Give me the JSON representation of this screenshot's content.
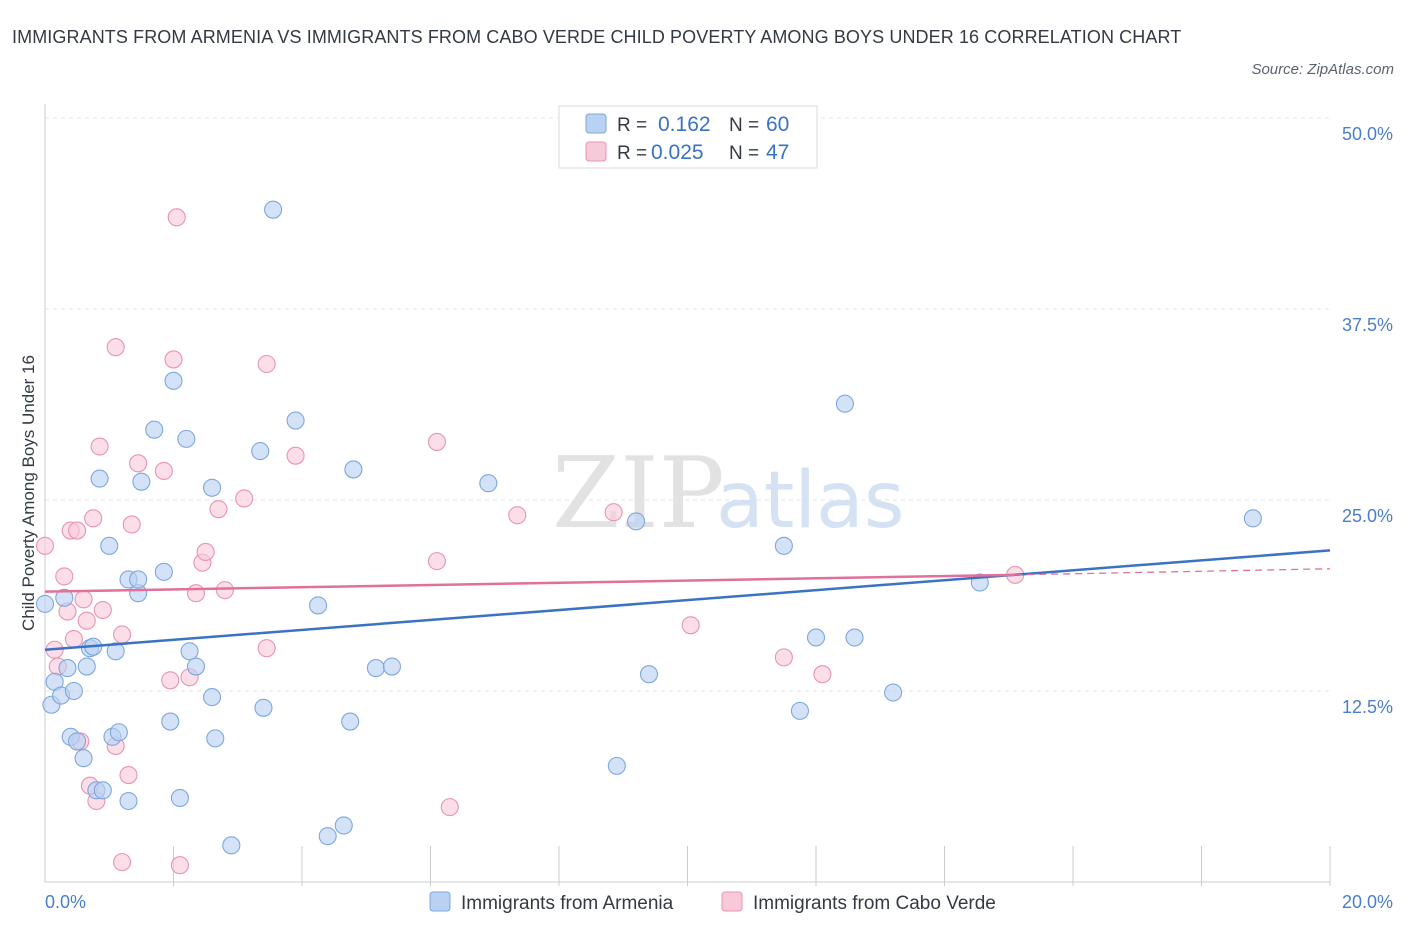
{
  "title": "IMMIGRANTS FROM ARMENIA VS IMMIGRANTS FROM CABO VERDE CHILD POVERTY AMONG BOYS UNDER 16 CORRELATION CHART",
  "source": "Source: ZipAtlas.com",
  "watermark": {
    "zip": "ZIP",
    "atlas": "atlas"
  },
  "colors": {
    "armenia_fill": "#b9d1f3",
    "armenia_stroke": "#7ea7de",
    "armenia_line": "#3a72c4",
    "cabo_fill": "#f8c9d8",
    "cabo_stroke": "#e994b0",
    "cabo_line": "#e0719a"
  },
  "stats": {
    "r_label": "R =",
    "n_label": "N =",
    "armenia": {
      "r": "0.162",
      "n": "60"
    },
    "cabo_verde": {
      "r": "0.025",
      "n": "47"
    }
  },
  "chart_data": {
    "type": "scatter",
    "title": "IMMIGRANTS FROM ARMENIA VS IMMIGRANTS FROM CABO VERDE CHILD POVERTY AMONG BOYS UNDER 16 CORRELATION CHART",
    "xlabel": "",
    "ylabel": "Child Poverty Among Boys Under 16",
    "xlim": [
      0,
      20
    ],
    "ylim": [
      0,
      50
    ],
    "x_tick_labels": [
      "0.0%",
      "20.0%"
    ],
    "y_ticks": [
      12.5,
      25.0,
      37.5,
      50.0
    ],
    "y_tick_labels": [
      "12.5%",
      "25.0%",
      "37.5%",
      "50.0%"
    ],
    "grid": true,
    "legend_position": "bottom-center",
    "series": [
      {
        "name": "Immigrants from Armenia",
        "trend": {
          "x": [
            0,
            20
          ],
          "y": [
            15.2,
            21.7
          ]
        },
        "points": [
          [
            0.0,
            18.2
          ],
          [
            0.1,
            11.6
          ],
          [
            0.15,
            13.1
          ],
          [
            0.25,
            12.2
          ],
          [
            0.3,
            18.6
          ],
          [
            0.35,
            14.0
          ],
          [
            0.4,
            9.5
          ],
          [
            0.45,
            12.5
          ],
          [
            0.5,
            9.2
          ],
          [
            0.6,
            8.1
          ],
          [
            0.65,
            14.1
          ],
          [
            0.7,
            15.3
          ],
          [
            0.75,
            15.4
          ],
          [
            0.8,
            6.0
          ],
          [
            0.85,
            26.4
          ],
          [
            0.9,
            6.0
          ],
          [
            1.0,
            22.0
          ],
          [
            1.05,
            9.5
          ],
          [
            1.1,
            15.1
          ],
          [
            1.15,
            9.8
          ],
          [
            1.3,
            5.3
          ],
          [
            1.3,
            19.8
          ],
          [
            1.45,
            18.9
          ],
          [
            1.45,
            19.8
          ],
          [
            1.5,
            26.2
          ],
          [
            1.7,
            29.6
          ],
          [
            1.85,
            20.3
          ],
          [
            1.95,
            10.5
          ],
          [
            2.0,
            32.8
          ],
          [
            2.1,
            5.5
          ],
          [
            2.2,
            29.0
          ],
          [
            2.25,
            15.1
          ],
          [
            2.35,
            14.1
          ],
          [
            2.6,
            12.1
          ],
          [
            2.6,
            25.8
          ],
          [
            2.65,
            9.4
          ],
          [
            2.9,
            2.4
          ],
          [
            3.35,
            28.2
          ],
          [
            3.4,
            11.4
          ],
          [
            3.55,
            44.0
          ],
          [
            3.9,
            30.2
          ],
          [
            4.25,
            18.1
          ],
          [
            4.4,
            3.0
          ],
          [
            4.65,
            3.7
          ],
          [
            4.75,
            10.5
          ],
          [
            4.8,
            27.0
          ],
          [
            5.15,
            14.0
          ],
          [
            5.4,
            14.1
          ],
          [
            6.9,
            26.1
          ],
          [
            8.9,
            7.6
          ],
          [
            9.2,
            23.6
          ],
          [
            9.4,
            13.6
          ],
          [
            11.5,
            22.0
          ],
          [
            11.75,
            11.2
          ],
          [
            12.0,
            16.0
          ],
          [
            12.45,
            31.3
          ],
          [
            12.6,
            16.0
          ],
          [
            13.2,
            12.4
          ],
          [
            14.55,
            19.6
          ],
          [
            18.8,
            23.8
          ]
        ]
      },
      {
        "name": "Immigrants from Cabo Verde",
        "trend": {
          "x": [
            0,
            15.1
          ],
          "y": [
            19.0,
            20.1
          ]
        },
        "dashed_extension": {
          "x": [
            15.1,
            20
          ],
          "y": [
            20.1,
            20.5
          ]
        },
        "points": [
          [
            0.0,
            22.0
          ],
          [
            0.15,
            15.2
          ],
          [
            0.2,
            14.1
          ],
          [
            0.3,
            20.0
          ],
          [
            0.35,
            17.7
          ],
          [
            0.4,
            23.0
          ],
          [
            0.45,
            15.9
          ],
          [
            0.5,
            23.0
          ],
          [
            0.55,
            9.2
          ],
          [
            0.6,
            18.5
          ],
          [
            0.65,
            17.1
          ],
          [
            0.7,
            6.3
          ],
          [
            0.75,
            23.8
          ],
          [
            0.8,
            5.3
          ],
          [
            0.85,
            28.5
          ],
          [
            0.9,
            17.8
          ],
          [
            1.1,
            8.9
          ],
          [
            1.1,
            35.0
          ],
          [
            1.2,
            1.3
          ],
          [
            1.2,
            16.2
          ],
          [
            1.3,
            7.0
          ],
          [
            1.35,
            23.4
          ],
          [
            1.45,
            27.4
          ],
          [
            1.85,
            26.9
          ],
          [
            1.95,
            13.2
          ],
          [
            2.0,
            34.2
          ],
          [
            2.05,
            43.5
          ],
          [
            2.1,
            1.1
          ],
          [
            2.25,
            13.4
          ],
          [
            2.35,
            18.9
          ],
          [
            2.45,
            20.9
          ],
          [
            2.5,
            21.6
          ],
          [
            2.7,
            24.4
          ],
          [
            2.8,
            19.1
          ],
          [
            3.1,
            25.1
          ],
          [
            3.45,
            15.3
          ],
          [
            3.45,
            33.9
          ],
          [
            3.9,
            27.9
          ],
          [
            6.1,
            28.8
          ],
          [
            6.1,
            21.0
          ],
          [
            6.3,
            4.9
          ],
          [
            7.35,
            24.0
          ],
          [
            8.85,
            24.2
          ],
          [
            10.05,
            16.8
          ],
          [
            11.5,
            14.7
          ],
          [
            12.1,
            13.6
          ],
          [
            15.1,
            20.1
          ]
        ]
      }
    ]
  }
}
